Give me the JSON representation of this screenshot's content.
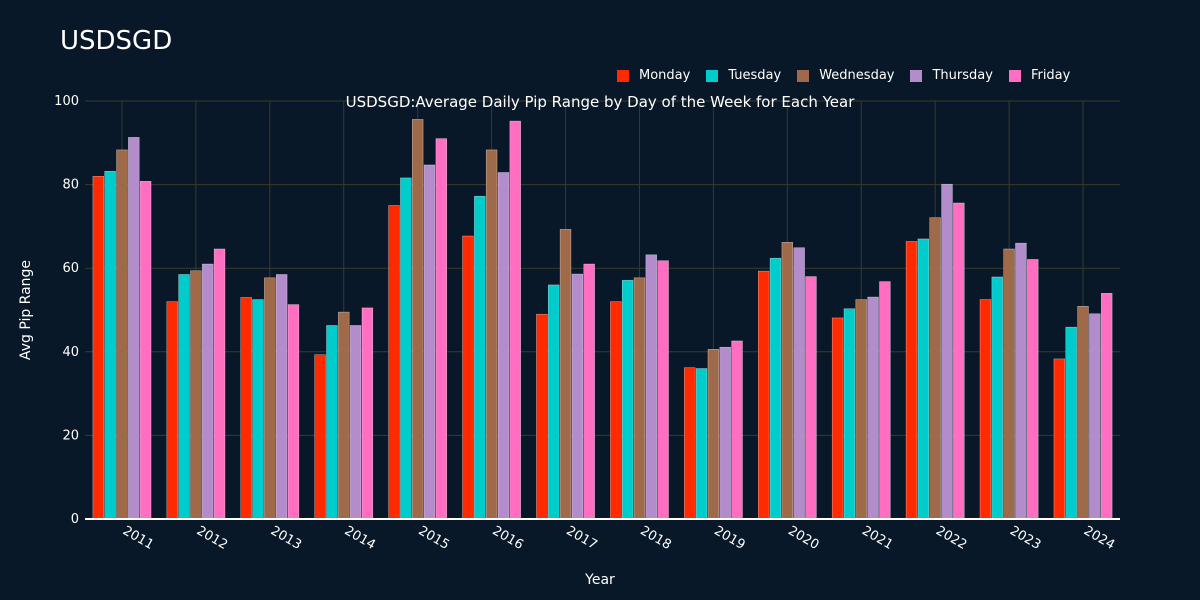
{
  "page_title": "USDSGD",
  "colors": {
    "background": "#081829",
    "grid": "#3a3a2a",
    "axis": "#ffffff",
    "text": "#ffffff"
  },
  "chart_data": {
    "type": "bar",
    "title": "USDSGD:Average Daily Pip Range by Day of the Week for Each Year",
    "xlabel": "Year",
    "ylabel": "Avg Pip Range",
    "ylim": [
      0,
      100
    ],
    "yticks": [
      0,
      20,
      40,
      60,
      80,
      100
    ],
    "grid": true,
    "legend_position": "top-right",
    "categories": [
      "2011",
      "2012",
      "2013",
      "2014",
      "2015",
      "2016",
      "2017",
      "2018",
      "2019",
      "2020",
      "2021",
      "2022",
      "2023",
      "2024"
    ],
    "series": [
      {
        "name": "Monday",
        "color": "#ff2a00",
        "values": [
          82,
          52,
          53,
          39.3,
          75,
          67.7,
          49,
          52,
          36.2,
          59.3,
          48.1,
          66.4,
          52.5,
          38.3
        ]
      },
      {
        "name": "Tuesday",
        "color": "#00cccc",
        "values": [
          83.2,
          58.5,
          52.5,
          46.3,
          81.6,
          77.2,
          56,
          57.1,
          36,
          62.4,
          50.3,
          67,
          57.9,
          45.9
        ]
      },
      {
        "name": "Wednesday",
        "color": "#9e6a4a",
        "values": [
          88.3,
          59.4,
          57.7,
          49.5,
          95.6,
          88.3,
          69.3,
          57.7,
          40.6,
          66.2,
          52.5,
          72.1,
          64.6,
          50.9
        ]
      },
      {
        "name": "Thursday",
        "color": "#b38ccc",
        "values": [
          91.3,
          61,
          58.5,
          46.3,
          84.7,
          82.9,
          58.6,
          63.2,
          41.1,
          64.9,
          53.1,
          80.1,
          66,
          49.1
        ]
      },
      {
        "name": "Friday",
        "color": "#ff6ec0",
        "values": [
          80.8,
          64.6,
          51.3,
          50.5,
          91,
          95.2,
          61,
          61.8,
          42.6,
          58,
          56.8,
          75.6,
          62.1,
          54
        ]
      }
    ]
  }
}
